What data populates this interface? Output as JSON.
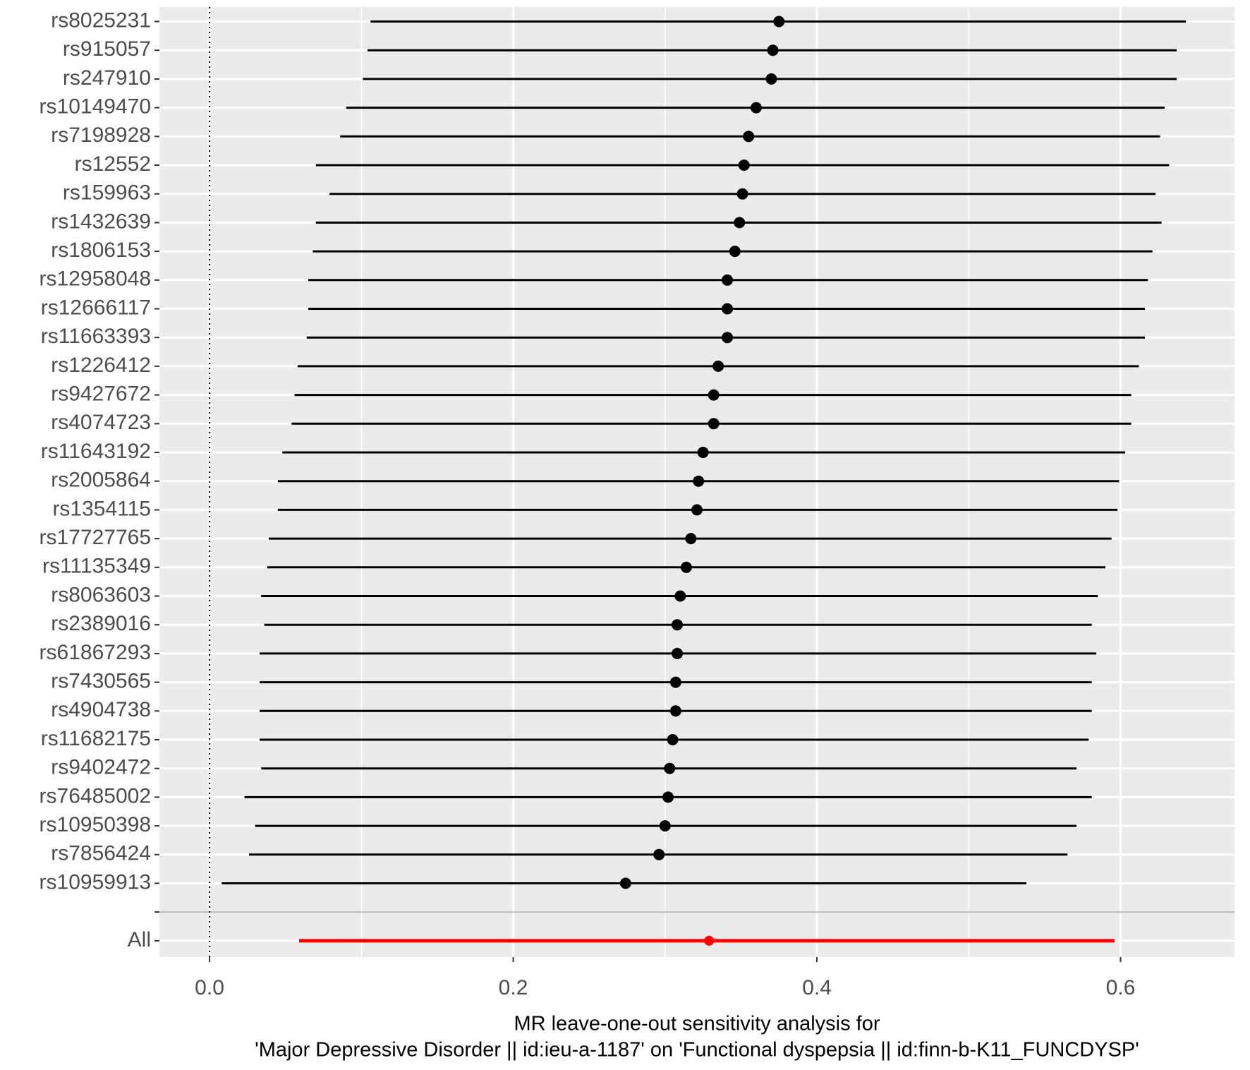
{
  "chart_data": {
    "type": "forest",
    "categories": [
      "rs8025231",
      "rs915057",
      "rs247910",
      "rs10149470",
      "rs7198928",
      "rs12552",
      "rs159963",
      "rs1432639",
      "rs1806153",
      "rs12958048",
      "rs12666117",
      "rs11663393",
      "rs1226412",
      "rs9427672",
      "rs4074723",
      "rs11643192",
      "rs2005864",
      "rs1354115",
      "rs17727765",
      "rs11135349",
      "rs8063603",
      "rs2389016",
      "rs61867293",
      "rs7430565",
      "rs4904738",
      "rs11682175",
      "rs9402472",
      "rs76485002",
      "rs10950398",
      "rs7856424",
      "rs10959913",
      null,
      "All"
    ],
    "values": [
      0.375,
      0.371,
      0.37,
      0.36,
      0.355,
      0.352,
      0.351,
      0.349,
      0.346,
      0.341,
      0.341,
      0.341,
      0.335,
      0.332,
      0.332,
      0.325,
      0.322,
      0.321,
      0.317,
      0.314,
      0.31,
      0.308,
      0.308,
      0.307,
      0.307,
      0.305,
      0.303,
      0.302,
      0.3,
      0.296,
      0.274,
      null,
      0.329
    ],
    "ci_lower": [
      0.106,
      0.104,
      0.101,
      0.09,
      0.086,
      0.07,
      0.079,
      0.07,
      0.068,
      0.065,
      0.065,
      0.064,
      0.058,
      0.056,
      0.054,
      0.048,
      0.045,
      0.045,
      0.039,
      0.038,
      0.034,
      0.036,
      0.033,
      0.033,
      0.033,
      0.033,
      0.034,
      0.023,
      0.03,
      0.026,
      0.008,
      null,
      0.059
    ],
    "ci_upper": [
      0.643,
      0.637,
      0.637,
      0.629,
      0.626,
      0.632,
      0.623,
      0.627,
      0.621,
      0.618,
      0.616,
      0.616,
      0.612,
      0.607,
      0.607,
      0.603,
      0.599,
      0.598,
      0.594,
      0.59,
      0.585,
      0.581,
      0.584,
      0.581,
      0.581,
      0.579,
      0.571,
      0.581,
      0.571,
      0.565,
      0.538,
      null,
      0.596
    ],
    "color": "#000000",
    "summary_color": "#ff0000",
    "xlim": [
      -0.033,
      0.675
    ],
    "xticks": [
      {
        "value": 0,
        "label": "0.0"
      },
      0.2,
      0.4,
      0.6
    ],
    "reference_line": 0,
    "grid": true,
    "xlabel": [
      "MR leave-one-out sensitivity analysis for",
      "'Major Depressive Disorder || id:ieu-a-1187' on 'Functional dyspepsia || id:finn-b-K11_FUNCDYSP'"
    ]
  }
}
